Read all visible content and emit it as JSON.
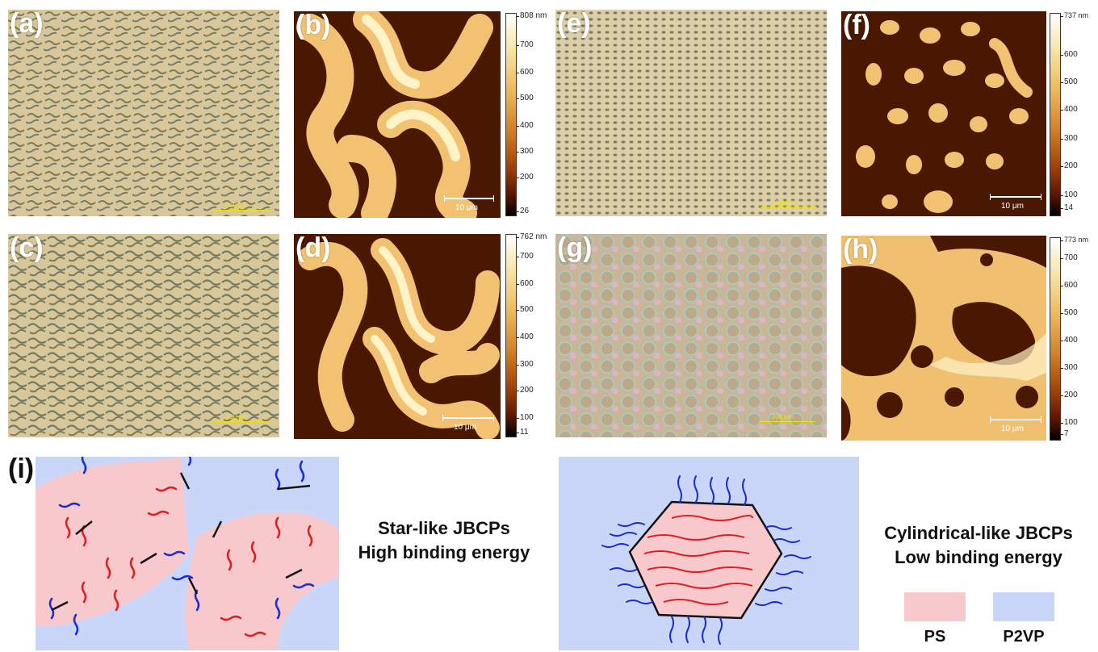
{
  "figure": {
    "panels": [
      {
        "id": "a",
        "label": "(a)",
        "kind": "optical",
        "scale_label": "200 μm"
      },
      {
        "id": "b",
        "label": "(b)",
        "kind": "afm",
        "scale_label": "10 μm",
        "colorbar": {
          "unit": "nm",
          "top": "808 nm",
          "ticks": [
            "700",
            "600",
            "500",
            "400",
            "300",
            "200"
          ],
          "bottom": "26"
        }
      },
      {
        "id": "c",
        "label": "(c)",
        "kind": "optical",
        "scale_label": "200 μm"
      },
      {
        "id": "d",
        "label": "(d)",
        "kind": "afm",
        "scale_label": "10 μm",
        "colorbar": {
          "unit": "nm",
          "top": "762 nm",
          "ticks": [
            "700",
            "600",
            "500",
            "400",
            "300",
            "200",
            "100"
          ],
          "bottom": "11"
        }
      },
      {
        "id": "e",
        "label": "(e)",
        "kind": "optical",
        "scale_label": "200 μm"
      },
      {
        "id": "f",
        "label": "(f)",
        "kind": "afm",
        "scale_label": "10 μm",
        "colorbar": {
          "unit": "nm",
          "top": "737 nm",
          "ticks": [
            "600",
            "500",
            "400",
            "300",
            "200",
            "100"
          ],
          "bottom": "14"
        }
      },
      {
        "id": "g",
        "label": "(g)",
        "kind": "optical",
        "scale_label": "200 μm"
      },
      {
        "id": "h",
        "label": "(h)",
        "kind": "afm",
        "scale_label": "10 μm",
        "colorbar": {
          "unit": "nm",
          "top": "773 nm",
          "ticks": [
            "700",
            "600",
            "500",
            "400",
            "300",
            "200",
            "100"
          ],
          "bottom": "7"
        }
      }
    ],
    "schematic": {
      "label": "(i)",
      "left_caption_line1": "Star-like JBCPs",
      "left_caption_line2": "High binding energy",
      "right_caption_line1": "Cylindrical-like JBCPs",
      "right_caption_line2": "Low binding energy",
      "legend": [
        {
          "name": "PS",
          "color": "#f8c9cc"
        },
        {
          "name": "P2VP",
          "color": "#c9d6f7"
        }
      ]
    }
  }
}
